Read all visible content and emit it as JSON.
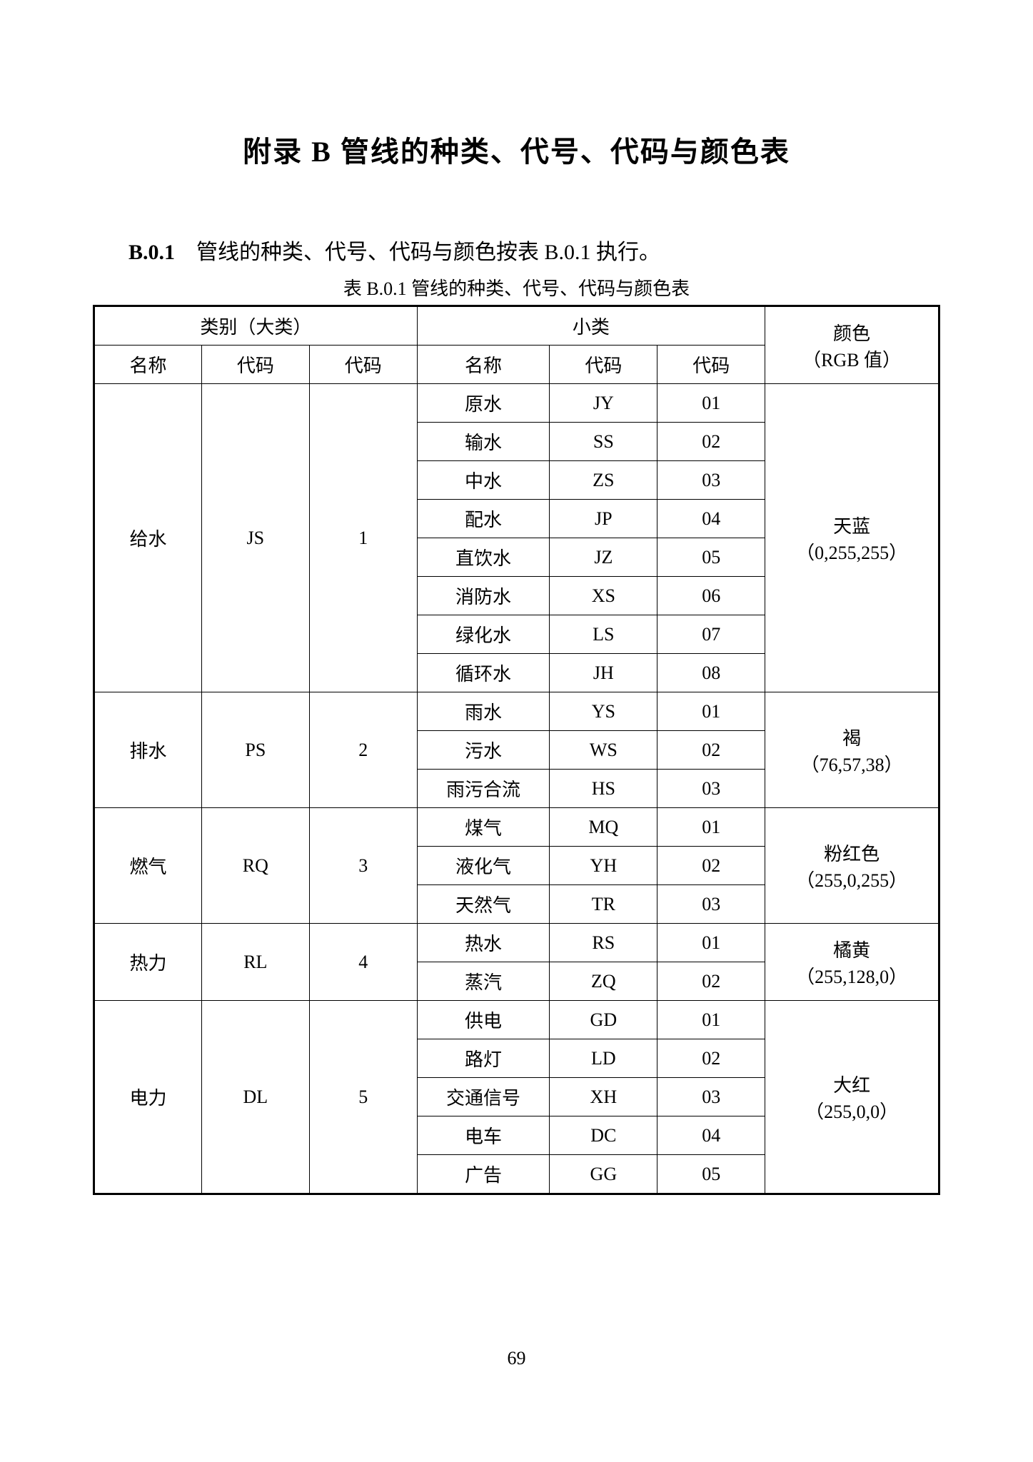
{
  "title": "附录 B   管线的种类、代号、代码与颜色表",
  "section_label": "B.0.1",
  "section_text": "管线的种类、代号、代码与颜色按表 B.0.1 执行。",
  "table_caption": "表 B.0.1   管线的种类、代号、代码与颜色表",
  "page_number": "69",
  "header": {
    "major_group": "类别（大类）",
    "minor_group": "小类",
    "color_group_l1": "颜色",
    "color_group_l2": "（RGB 值）",
    "name": "名称",
    "symbol": "代码",
    "code": "代码"
  },
  "groups": [
    {
      "major_name": "给水",
      "major_symbol": "JS",
      "major_code": "1",
      "color_name": "天蓝",
      "color_rgb": "（0,255,255）",
      "subs": [
        {
          "name": "原水",
          "symbol": "JY",
          "code": "01"
        },
        {
          "name": "输水",
          "symbol": "SS",
          "code": "02"
        },
        {
          "name": "中水",
          "symbol": "ZS",
          "code": "03"
        },
        {
          "name": "配水",
          "symbol": "JP",
          "code": "04"
        },
        {
          "name": "直饮水",
          "symbol": "JZ",
          "code": "05"
        },
        {
          "name": "消防水",
          "symbol": "XS",
          "code": "06"
        },
        {
          "name": "绿化水",
          "symbol": "LS",
          "code": "07"
        },
        {
          "name": "循环水",
          "symbol": "JH",
          "code": "08"
        }
      ]
    },
    {
      "major_name": "排水",
      "major_symbol": "PS",
      "major_code": "2",
      "color_name": "褐",
      "color_rgb": "（76,57,38）",
      "subs": [
        {
          "name": "雨水",
          "symbol": "YS",
          "code": "01"
        },
        {
          "name": "污水",
          "symbol": "WS",
          "code": "02"
        },
        {
          "name": "雨污合流",
          "symbol": "HS",
          "code": "03"
        }
      ]
    },
    {
      "major_name": "燃气",
      "major_symbol": "RQ",
      "major_code": "3",
      "color_name": "粉红色",
      "color_rgb": "（255,0,255）",
      "subs": [
        {
          "name": "煤气",
          "symbol": "MQ",
          "code": "01"
        },
        {
          "name": "液化气",
          "symbol": "YH",
          "code": "02"
        },
        {
          "name": "天然气",
          "symbol": "TR",
          "code": "03"
        }
      ]
    },
    {
      "major_name": "热力",
      "major_symbol": "RL",
      "major_code": "4",
      "color_name": "橘黄",
      "color_rgb": "（255,128,0）",
      "subs": [
        {
          "name": "热水",
          "symbol": "RS",
          "code": "01"
        },
        {
          "name": "蒸汽",
          "symbol": "ZQ",
          "code": "02"
        }
      ]
    },
    {
      "major_name": "电力",
      "major_symbol": "DL",
      "major_code": "5",
      "color_name": "大红",
      "color_rgb": "（255,0,0）",
      "subs": [
        {
          "name": "供电",
          "symbol": "GD",
          "code": "01"
        },
        {
          "name": "路灯",
          "symbol": "LD",
          "code": "02"
        },
        {
          "name": "交通信号",
          "symbol": "XH",
          "code": "03"
        },
        {
          "name": "电车",
          "symbol": "DC",
          "code": "04"
        },
        {
          "name": "广告",
          "symbol": "GG",
          "code": "05"
        }
      ]
    }
  ]
}
